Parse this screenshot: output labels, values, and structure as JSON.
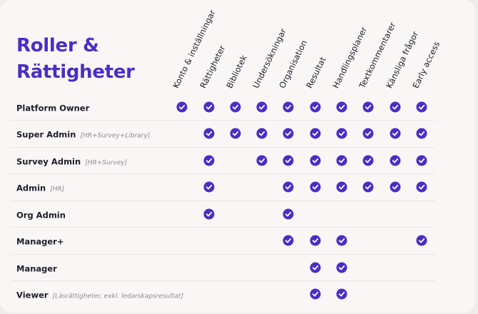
{
  "title": {
    "line1": "Roller &",
    "line2": "Rättigheter"
  },
  "columns": [
    "Konto & inställningar",
    "Rättigheter",
    "Bibliotek",
    "Undersökningar",
    "Organisation",
    "Resultat",
    "Handlingsplaner",
    "Textkommentarer",
    "Känsliga frågor",
    "Early access"
  ],
  "rows": [
    {
      "name": "Platform Owner",
      "note": "",
      "checks": [
        true,
        true,
        true,
        true,
        true,
        true,
        true,
        true,
        true,
        true
      ]
    },
    {
      "name": "Super Admin",
      "note": "[HR+Survey+Library]",
      "checks": [
        false,
        true,
        true,
        true,
        true,
        true,
        true,
        true,
        true,
        true
      ]
    },
    {
      "name": "Survey Admin",
      "note": "[HR+Survey]",
      "checks": [
        false,
        true,
        false,
        true,
        true,
        true,
        true,
        true,
        true,
        true
      ]
    },
    {
      "name": "Admin",
      "note": "[HR]",
      "checks": [
        false,
        true,
        false,
        false,
        true,
        true,
        true,
        true,
        true,
        true
      ]
    },
    {
      "name": "Org Admin",
      "note": "",
      "checks": [
        false,
        true,
        false,
        false,
        true,
        false,
        false,
        false,
        false,
        false
      ]
    },
    {
      "name": "Manager+",
      "note": "",
      "checks": [
        false,
        false,
        false,
        false,
        true,
        true,
        true,
        false,
        false,
        true
      ]
    },
    {
      "name": "Manager",
      "note": "",
      "checks": [
        false,
        false,
        false,
        false,
        false,
        true,
        true,
        false,
        false,
        false
      ]
    },
    {
      "name": "Viewer",
      "note": "[Läsrättigheter, exkl. ledarskapsresultat]",
      "checks": [
        false,
        false,
        false,
        false,
        false,
        true,
        true,
        false,
        false,
        false
      ]
    }
  ],
  "colors": {
    "accent": "#4a2ec4",
    "text": "#1f1d2a",
    "note": "#8b8792"
  },
  "icons": {
    "check": "check-circle-icon"
  }
}
